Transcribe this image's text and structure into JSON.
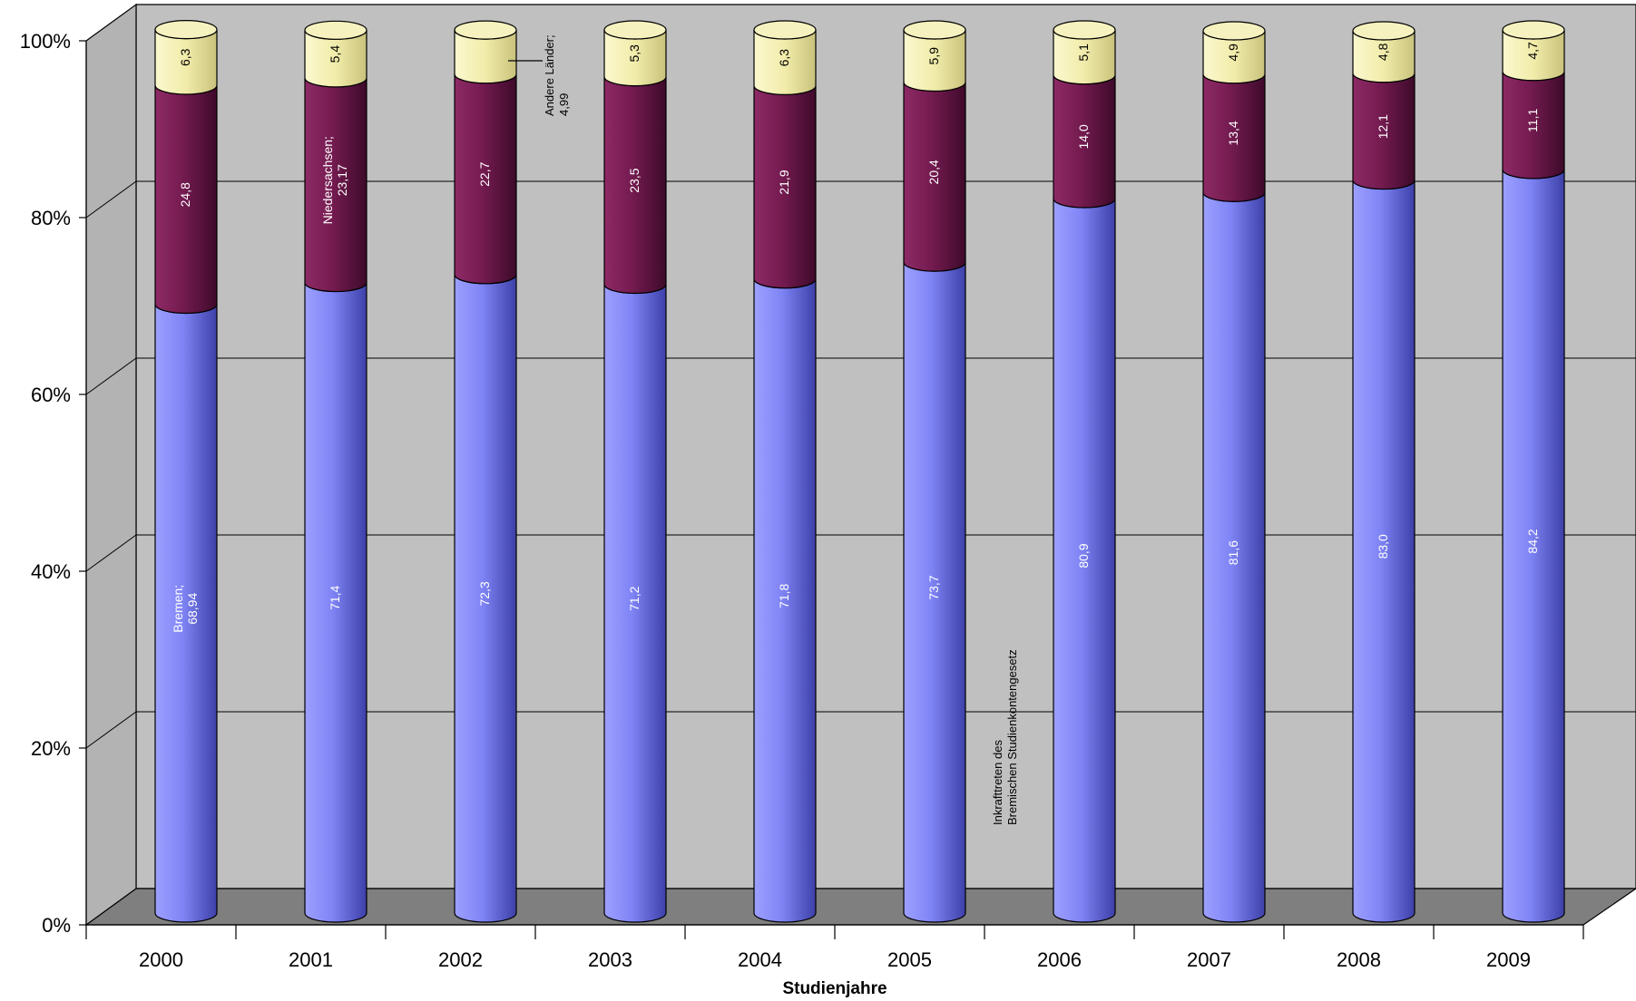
{
  "chart_data": {
    "type": "bar",
    "stacked": true,
    "categories": [
      "2000",
      "2001",
      "2002",
      "2003",
      "2004",
      "2005",
      "2006",
      "2007",
      "2008",
      "2009"
    ],
    "series": [
      {
        "name": "Bremen",
        "color": "#7b7ff0",
        "values": [
          68.94,
          71.4,
          72.3,
          71.2,
          71.8,
          73.7,
          80.9,
          81.6,
          83.0,
          84.2
        ],
        "labels": [
          "Bremen;\n68,94",
          "71,4",
          "72,3",
          "71,2",
          "71,8",
          "73,7",
          "80,9",
          "81,6",
          "83,0",
          "84,2"
        ]
      },
      {
        "name": "Niedersachsen",
        "color": "#7a1a52",
        "values": [
          24.8,
          23.17,
          22.7,
          23.5,
          21.9,
          20.4,
          14.0,
          13.4,
          12.1,
          11.1
        ],
        "labels": [
          "24,8",
          "Niedersachsen;\n23,17",
          "22,7",
          "23,5",
          "21,9",
          "20,4",
          "14,0",
          "13,4",
          "12,1",
          "11,1"
        ]
      },
      {
        "name": "Andere Länder",
        "color": "#f4f0b0",
        "values": [
          6.3,
          5.4,
          4.99,
          5.3,
          6.3,
          5.9,
          5.1,
          4.9,
          4.8,
          4.7
        ],
        "labels": [
          "6,3",
          "5,4",
          "",
          "5,3",
          "6,3",
          "5,9",
          "5,1",
          "4,9",
          "4,8",
          "4,7"
        ]
      }
    ],
    "callout": "Andere Länder;\n4,99",
    "annotation": "Inkrafttreten des\nBremischen Studienkontengesetz",
    "xlabel": "Studienjahre",
    "ylabel": "",
    "ylim": [
      0,
      100
    ],
    "yticks": [
      "0%",
      "20%",
      "40%",
      "60%",
      "80%",
      "100%"
    ],
    "grid": true,
    "legend": "none",
    "wall_color": "#c0c0c0",
    "floor_color": "#808080"
  }
}
